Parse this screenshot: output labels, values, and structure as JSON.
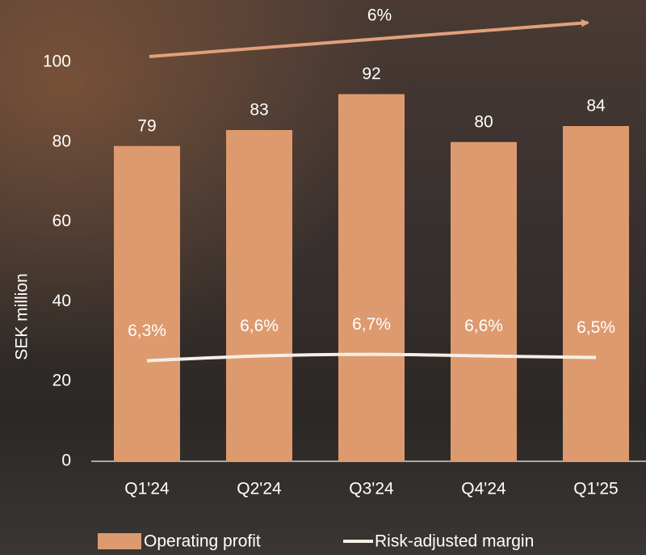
{
  "chart_data": {
    "type": "bar",
    "categories": [
      "Q1'24",
      "Q2'24",
      "Q3'24",
      "Q4'24",
      "Q1'25"
    ],
    "series": [
      {
        "name": "Operating profit",
        "color": "#dd9a6e",
        "values": [
          79,
          83,
          92,
          80,
          84
        ]
      },
      {
        "name": "Risk-adjusted margin",
        "color": "#f5efe6",
        "axis": "y2",
        "type": "line",
        "values": [
          6.3,
          6.6,
          6.7,
          6.6,
          6.5
        ],
        "value_labels": [
          "6,3%",
          "6,6%",
          "6,7%",
          "6,6%",
          "6,5%"
        ]
      }
    ],
    "ylabel": "SEK million",
    "ylim": [
      0,
      100
    ],
    "yticks": [
      0,
      20,
      40,
      60,
      80,
      100
    ],
    "y2lim": [
      0,
      25
    ],
    "annotation": "6%",
    "legend": "bottom"
  }
}
